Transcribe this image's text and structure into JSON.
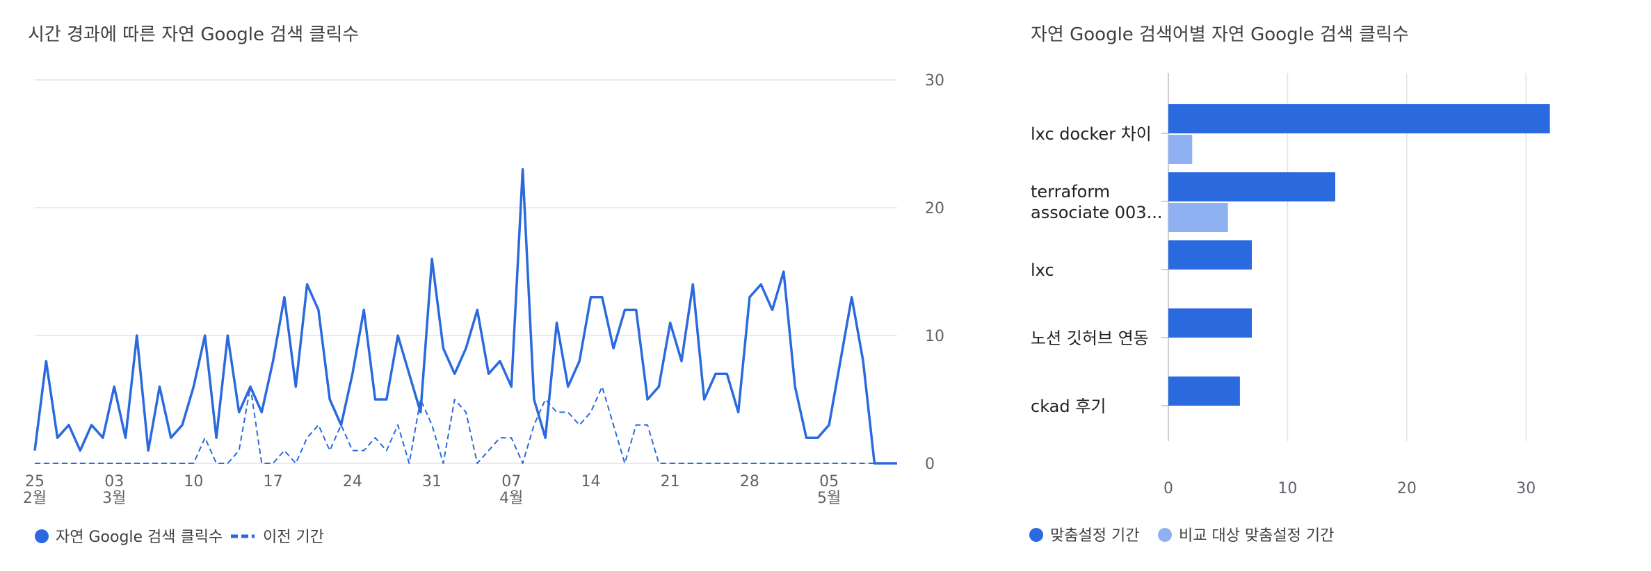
{
  "colors": {
    "primary": "#2a6ade",
    "secondary": "#8fb1f2",
    "grid": "#e3e3e3",
    "text": "#3c4043",
    "axis_text": "#5f6368"
  },
  "chart_data": [
    {
      "type": "line",
      "title": "시간 경과에 따른 자연 Google 검색 클릭수",
      "x_tick_labels": [
        {
          "day": "25",
          "month": "2월"
        },
        {
          "day": "03",
          "month": "3월"
        },
        {
          "day": "10",
          "month": ""
        },
        {
          "day": "17",
          "month": ""
        },
        {
          "day": "24",
          "month": ""
        },
        {
          "day": "31",
          "month": ""
        },
        {
          "day": "07",
          "month": "4월"
        },
        {
          "day": "14",
          "month": ""
        },
        {
          "day": "21",
          "month": ""
        },
        {
          "day": "28",
          "month": ""
        },
        {
          "day": "05",
          "month": "5월"
        }
      ],
      "y_ticks": [
        "30",
        "20",
        "10",
        "0"
      ],
      "ylim": [
        0,
        30
      ],
      "y_axis_position": "right",
      "grid": true,
      "legend_position": "bottom-left",
      "series": [
        {
          "name": "자연 Google 검색 클릭수",
          "style": "solid",
          "values": [
            1,
            8,
            2,
            3,
            1,
            3,
            2,
            6,
            2,
            10,
            1,
            6,
            2,
            3,
            6,
            10,
            2,
            10,
            4,
            6,
            4,
            8,
            13,
            6,
            14,
            12,
            5,
            3,
            7,
            12,
            5,
            5,
            10,
            7,
            4,
            16,
            9,
            7,
            9,
            12,
            7,
            8,
            6,
            23,
            5,
            2,
            11,
            6,
            8,
            13,
            13,
            9,
            12,
            12,
            5,
            6,
            11,
            8,
            14,
            5,
            7,
            7,
            4,
            13,
            14,
            12,
            15,
            6,
            2,
            2,
            3,
            8,
            13,
            8,
            0,
            0,
            0
          ]
        },
        {
          "name": "이전 기간",
          "style": "dashed",
          "values": [
            0,
            0,
            0,
            0,
            0,
            0,
            0,
            0,
            0,
            0,
            0,
            0,
            0,
            0,
            0,
            2,
            0,
            0,
            1,
            6,
            0,
            0,
            1,
            0,
            2,
            3,
            1,
            3,
            1,
            1,
            2,
            1,
            3,
            0,
            5,
            3,
            0,
            5,
            4,
            0,
            1,
            2,
            2,
            0,
            3,
            5,
            4,
            4,
            3,
            4,
            6,
            3,
            0,
            3,
            3,
            0,
            0,
            0,
            0,
            0,
            0,
            0,
            0,
            0,
            0,
            0,
            0,
            0,
            0,
            0,
            0,
            0,
            0,
            0,
            0,
            0,
            0
          ]
        }
      ]
    },
    {
      "type": "bar",
      "orientation": "horizontal",
      "title": "자연 Google 검색어별 자연 Google 검색 클릭수",
      "categories": [
        "lxc docker 차이",
        "terraform\nassociate 003...",
        "lxc",
        "노션 깃허브 연동",
        "ckad 후기"
      ],
      "x_ticks": [
        "0",
        "10",
        "20",
        "30"
      ],
      "xlim": [
        0,
        35
      ],
      "grid": true,
      "legend_position": "bottom-left",
      "series": [
        {
          "name": "맞춤설정 기간",
          "values": [
            32,
            14,
            7,
            7,
            6
          ]
        },
        {
          "name": "비교 대상 맞춤설정 기간",
          "values": [
            2,
            5,
            0,
            0,
            0
          ]
        }
      ]
    }
  ]
}
